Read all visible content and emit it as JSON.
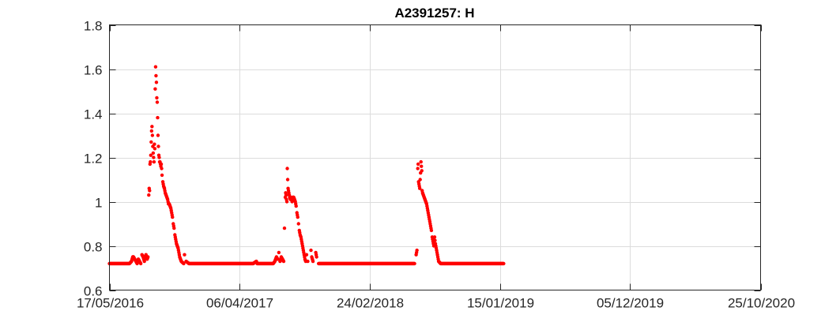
{
  "chart_data": {
    "type": "scatter",
    "title": "A2391257: H",
    "xlabel": "",
    "ylabel": "",
    "x_axis": {
      "type": "date",
      "range": [
        "2016-05-17",
        "2020-10-25"
      ],
      "ticks": [
        "2016-05-17",
        "2017-04-06",
        "2018-02-24",
        "2019-01-15",
        "2019-12-05",
        "2020-10-25"
      ],
      "tick_labels": [
        "17/05/2016",
        "06/04/2017",
        "24/02/2018",
        "15/01/2019",
        "05/12/2019",
        "25/10/2020"
      ]
    },
    "y_axis": {
      "range": [
        0.6,
        1.8
      ],
      "ticks": [
        0.6,
        0.8,
        1.0,
        1.2,
        1.4,
        1.6,
        1.8
      ],
      "tick_labels": [
        "0.6",
        "0.8",
        "1",
        "1.2",
        "1.4",
        "1.6",
        "1.8"
      ]
    },
    "grid": true,
    "series": [
      {
        "name": "H",
        "color": "#ff0000",
        "marker": "dot",
        "points": [
          [
            "2016-05-17",
            0.72
          ],
          [
            "2016-05-22",
            0.72
          ],
          [
            "2016-05-27",
            0.72
          ],
          [
            "2016-06-01",
            0.72
          ],
          [
            "2016-06-06",
            0.72
          ],
          [
            "2016-06-11",
            0.72
          ],
          [
            "2016-06-16",
            0.72
          ],
          [
            "2016-06-21",
            0.72
          ],
          [
            "2016-06-26",
            0.72
          ],
          [
            "2016-07-01",
            0.72
          ],
          [
            "2016-07-06",
            0.72
          ],
          [
            "2016-07-11",
            0.73
          ],
          [
            "2016-07-14",
            0.75
          ],
          [
            "2016-07-16",
            0.75
          ],
          [
            "2016-07-19",
            0.74
          ],
          [
            "2016-07-22",
            0.73
          ],
          [
            "2016-07-25",
            0.72
          ],
          [
            "2016-07-28",
            0.74
          ],
          [
            "2016-07-31",
            0.73
          ],
          [
            "2016-08-03",
            0.72
          ],
          [
            "2016-08-06",
            0.76
          ],
          [
            "2016-08-09",
            0.75
          ],
          [
            "2016-08-12",
            0.73
          ],
          [
            "2016-08-14",
            0.75
          ],
          [
            "2016-08-16",
            0.76
          ],
          [
            "2016-08-19",
            0.74
          ],
          [
            "2016-08-21",
            0.75
          ],
          [
            "2016-08-23",
            1.03
          ],
          [
            "2016-08-24",
            1.06
          ],
          [
            "2016-08-25",
            1.05
          ],
          [
            "2016-08-26",
            1.17
          ],
          [
            "2016-08-27",
            1.18
          ],
          [
            "2016-08-28",
            1.21
          ],
          [
            "2016-08-29",
            1.27
          ],
          [
            "2016-08-30",
            1.32
          ],
          [
            "2016-08-31",
            1.34
          ],
          [
            "2016-09-01",
            1.3
          ],
          [
            "2016-09-02",
            1.25
          ],
          [
            "2016-09-03",
            1.22
          ],
          [
            "2016-09-04",
            1.2
          ],
          [
            "2016-09-05",
            1.18
          ],
          [
            "2016-09-06",
            1.26
          ],
          [
            "2016-09-07",
            1.24
          ],
          [
            "2016-09-08",
            1.51
          ],
          [
            "2016-09-09",
            1.61
          ],
          [
            "2016-09-10",
            1.57
          ],
          [
            "2016-09-11",
            1.54
          ],
          [
            "2016-09-12",
            1.47
          ],
          [
            "2016-09-13",
            1.45
          ],
          [
            "2016-09-14",
            1.38
          ],
          [
            "2016-09-15",
            1.3
          ],
          [
            "2016-09-16",
            1.25
          ],
          [
            "2016-09-17",
            1.21
          ],
          [
            "2016-09-18",
            1.2
          ],
          [
            "2016-09-19",
            1.18
          ],
          [
            "2016-09-20",
            1.18
          ],
          [
            "2016-09-21",
            1.17
          ],
          [
            "2016-09-22",
            1.16
          ],
          [
            "2016-09-23",
            1.17
          ],
          [
            "2016-09-24",
            1.15
          ],
          [
            "2016-09-25",
            1.12
          ],
          [
            "2016-09-27",
            1.09
          ],
          [
            "2016-09-29",
            1.07
          ],
          [
            "2016-10-01",
            1.06
          ],
          [
            "2016-10-03",
            1.04
          ],
          [
            "2016-10-05",
            1.03
          ],
          [
            "2016-10-07",
            1.02
          ],
          [
            "2016-10-09",
            1.01
          ],
          [
            "2016-10-11",
            0.99
          ],
          [
            "2016-10-13",
            0.99
          ],
          [
            "2016-10-15",
            0.98
          ],
          [
            "2016-10-17",
            0.97
          ],
          [
            "2016-10-19",
            0.95
          ],
          [
            "2016-10-21",
            0.93
          ],
          [
            "2016-10-23",
            0.9
          ],
          [
            "2016-10-25",
            0.88
          ],
          [
            "2016-10-27",
            0.85
          ],
          [
            "2016-10-29",
            0.83
          ],
          [
            "2016-10-31",
            0.81
          ],
          [
            "2016-11-02",
            0.8
          ],
          [
            "2016-11-04",
            0.79
          ],
          [
            "2016-11-06",
            0.77
          ],
          [
            "2016-11-08",
            0.75
          ],
          [
            "2016-11-10",
            0.74
          ],
          [
            "2016-11-12",
            0.73
          ],
          [
            "2016-11-18",
            0.72
          ],
          [
            "2016-11-20",
            0.76
          ],
          [
            "2016-11-24",
            0.73
          ],
          [
            "2016-12-01",
            0.72
          ],
          [
            "2016-12-11",
            0.72
          ],
          [
            "2016-12-21",
            0.72
          ],
          [
            "2016-12-31",
            0.72
          ],
          [
            "2017-01-10",
            0.72
          ],
          [
            "2017-01-20",
            0.72
          ],
          [
            "2017-01-30",
            0.72
          ],
          [
            "2017-02-09",
            0.72
          ],
          [
            "2017-02-19",
            0.72
          ],
          [
            "2017-03-01",
            0.72
          ],
          [
            "2017-03-11",
            0.72
          ],
          [
            "2017-03-21",
            0.72
          ],
          [
            "2017-03-31",
            0.72
          ],
          [
            "2017-04-10",
            0.72
          ],
          [
            "2017-04-20",
            0.72
          ],
          [
            "2017-04-30",
            0.72
          ],
          [
            "2017-05-10",
            0.72
          ],
          [
            "2017-05-18",
            0.73
          ],
          [
            "2017-05-20",
            0.72
          ],
          [
            "2017-05-30",
            0.72
          ],
          [
            "2017-06-09",
            0.72
          ],
          [
            "2017-06-19",
            0.72
          ],
          [
            "2017-06-29",
            0.72
          ],
          [
            "2017-07-03",
            0.73
          ],
          [
            "2017-07-07",
            0.75
          ],
          [
            "2017-07-10",
            0.74
          ],
          [
            "2017-07-13",
            0.77
          ],
          [
            "2017-07-16",
            0.73
          ],
          [
            "2017-07-19",
            0.75
          ],
          [
            "2017-07-22",
            0.74
          ],
          [
            "2017-07-25",
            0.73
          ],
          [
            "2017-07-27",
            0.88
          ],
          [
            "2017-07-29",
            1.02
          ],
          [
            "2017-07-30",
            1.04
          ],
          [
            "2017-07-31",
            1.03
          ],
          [
            "2017-08-01",
            1.01
          ],
          [
            "2017-08-02",
            1.0
          ],
          [
            "2017-08-03",
            1.15
          ],
          [
            "2017-08-04",
            1.1
          ],
          [
            "2017-08-05",
            1.06
          ],
          [
            "2017-08-06",
            1.05
          ],
          [
            "2017-08-07",
            1.04
          ],
          [
            "2017-08-08",
            1.03
          ],
          [
            "2017-08-09",
            1.02
          ],
          [
            "2017-08-11",
            1.01
          ],
          [
            "2017-08-13",
            1.02
          ],
          [
            "2017-08-15",
            1.0
          ],
          [
            "2017-08-17",
            1.02
          ],
          [
            "2017-08-19",
            1.02
          ],
          [
            "2017-08-21",
            1.01
          ],
          [
            "2017-08-23",
            1.0
          ],
          [
            "2017-08-25",
            0.98
          ],
          [
            "2017-08-27",
            0.95
          ],
          [
            "2017-08-29",
            0.93
          ],
          [
            "2017-08-31",
            0.9
          ],
          [
            "2017-09-02",
            0.87
          ],
          [
            "2017-09-04",
            0.85
          ],
          [
            "2017-09-06",
            0.84
          ],
          [
            "2017-09-08",
            0.82
          ],
          [
            "2017-09-10",
            0.8
          ],
          [
            "2017-09-12",
            0.78
          ],
          [
            "2017-09-14",
            0.76
          ],
          [
            "2017-09-16",
            0.74
          ],
          [
            "2017-09-18",
            0.73
          ],
          [
            "2017-09-20",
            0.76
          ],
          [
            "2017-09-23",
            0.73
          ],
          [
            "2017-10-01",
            0.78
          ],
          [
            "2017-10-03",
            0.75
          ],
          [
            "2017-10-06",
            0.73
          ],
          [
            "2017-10-13",
            0.77
          ],
          [
            "2017-10-15",
            0.75
          ],
          [
            "2017-10-20",
            0.72
          ],
          [
            "2017-11-01",
            0.72
          ],
          [
            "2017-11-11",
            0.72
          ],
          [
            "2017-11-21",
            0.72
          ],
          [
            "2017-12-01",
            0.72
          ],
          [
            "2017-12-11",
            0.72
          ],
          [
            "2017-12-21",
            0.72
          ],
          [
            "2017-12-31",
            0.72
          ],
          [
            "2018-01-10",
            0.72
          ],
          [
            "2018-01-20",
            0.72
          ],
          [
            "2018-01-30",
            0.72
          ],
          [
            "2018-02-09",
            0.72
          ],
          [
            "2018-02-19",
            0.72
          ],
          [
            "2018-03-01",
            0.72
          ],
          [
            "2018-03-11",
            0.72
          ],
          [
            "2018-03-21",
            0.72
          ],
          [
            "2018-03-31",
            0.72
          ],
          [
            "2018-04-10",
            0.72
          ],
          [
            "2018-04-20",
            0.72
          ],
          [
            "2018-04-30",
            0.72
          ],
          [
            "2018-05-10",
            0.72
          ],
          [
            "2018-05-20",
            0.72
          ],
          [
            "2018-05-30",
            0.72
          ],
          [
            "2018-06-09",
            0.72
          ],
          [
            "2018-06-16",
            0.72
          ],
          [
            "2018-06-20",
            0.76
          ],
          [
            "2018-06-22",
            0.78
          ],
          [
            "2018-06-24",
            1.15
          ],
          [
            "2018-06-25",
            1.17
          ],
          [
            "2018-06-26",
            1.09
          ],
          [
            "2018-06-27",
            1.08
          ],
          [
            "2018-06-28",
            1.07
          ],
          [
            "2018-06-29",
            1.06
          ],
          [
            "2018-06-30",
            1.1
          ],
          [
            "2018-07-01",
            1.13
          ],
          [
            "2018-07-02",
            1.18
          ],
          [
            "2018-07-03",
            1.16
          ],
          [
            "2018-07-04",
            1.14
          ],
          [
            "2018-07-05",
            1.05
          ],
          [
            "2018-07-06",
            1.04
          ],
          [
            "2018-07-08",
            1.03
          ],
          [
            "2018-07-10",
            1.02
          ],
          [
            "2018-07-12",
            1.01
          ],
          [
            "2018-07-14",
            1.0
          ],
          [
            "2018-07-16",
            0.99
          ],
          [
            "2018-07-18",
            0.97
          ],
          [
            "2018-07-20",
            0.95
          ],
          [
            "2018-07-22",
            0.93
          ],
          [
            "2018-07-24",
            0.91
          ],
          [
            "2018-07-26",
            0.89
          ],
          [
            "2018-07-28",
            0.87
          ],
          [
            "2018-07-30",
            0.84
          ],
          [
            "2018-08-01",
            0.82
          ],
          [
            "2018-08-03",
            0.8
          ],
          [
            "2018-08-05",
            0.84
          ],
          [
            "2018-08-07",
            0.81
          ],
          [
            "2018-08-09",
            0.79
          ],
          [
            "2018-08-11",
            0.77
          ],
          [
            "2018-08-13",
            0.75
          ],
          [
            "2018-08-15",
            0.73
          ],
          [
            "2018-08-20",
            0.72
          ],
          [
            "2018-08-30",
            0.72
          ],
          [
            "2018-09-09",
            0.72
          ],
          [
            "2018-09-19",
            0.72
          ],
          [
            "2018-09-29",
            0.72
          ],
          [
            "2018-10-09",
            0.72
          ],
          [
            "2018-10-19",
            0.72
          ],
          [
            "2018-10-29",
            0.72
          ],
          [
            "2018-11-08",
            0.72
          ],
          [
            "2018-11-18",
            0.72
          ],
          [
            "2018-11-28",
            0.72
          ],
          [
            "2018-12-08",
            0.72
          ],
          [
            "2018-12-18",
            0.72
          ],
          [
            "2018-12-28",
            0.72
          ],
          [
            "2019-01-07",
            0.72
          ],
          [
            "2019-01-17",
            0.72
          ],
          [
            "2019-01-24",
            0.72
          ]
        ]
      }
    ]
  }
}
